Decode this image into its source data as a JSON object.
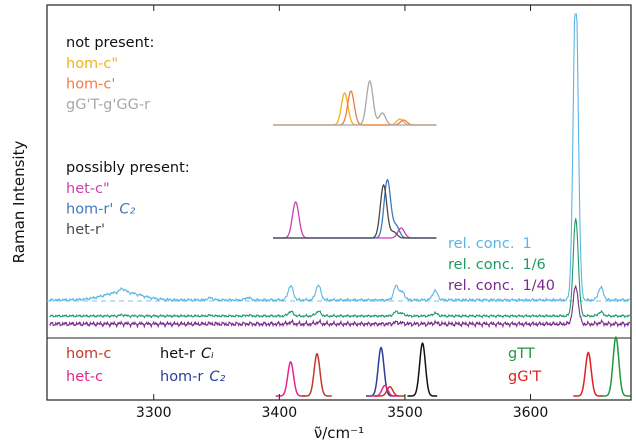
{
  "chart_data": {
    "type": "line",
    "xlabel": "ν̃/cm⁻¹",
    "ylabel": "Raman Intensity",
    "xlim": [
      3215,
      3680
    ],
    "x_ticks": [
      3300,
      3400,
      3500,
      3600
    ],
    "grid": false,
    "groups": [
      {
        "heading": "not present:",
        "series": [
          {
            "name": "hom-c\"",
            "color": "#f0b216",
            "peaks": [
              {
                "x": 3452,
                "h": 0.32
              },
              {
                "x": 3496,
                "h": 0.06
              }
            ]
          },
          {
            "name": "hom-c'",
            "color": "#ee7d45",
            "peaks": [
              {
                "x": 3457,
                "h": 0.34
              },
              {
                "x": 3499,
                "h": 0.05
              }
            ]
          },
          {
            "name": "gG'T-g'GG-r",
            "color": "#a8a8a8",
            "peaks": [
              {
                "x": 3472,
                "h": 0.44
              },
              {
                "x": 3482,
                "h": 0.12
              }
            ]
          }
        ]
      },
      {
        "heading": "possibly present:",
        "series": [
          {
            "name": "het-c\"",
            "math": "",
            "color": "#cc3fb0",
            "peaks": [
              {
                "x": 3413,
                "h": 0.36
              },
              {
                "x": 3497,
                "h": 0.1
              }
            ]
          },
          {
            "name": "hom-r'",
            "math": "C₂",
            "color": "#3f78be",
            "peaks": [
              {
                "x": 3486,
                "h": 0.58
              },
              {
                "x": 3493,
                "h": 0.12
              }
            ]
          },
          {
            "name": "het-r'",
            "math": "",
            "color": "#4a4a4a",
            "peaks": [
              {
                "x": 3483,
                "h": 0.53
              },
              {
                "x": 3491,
                "h": 0.06
              }
            ]
          }
        ]
      }
    ],
    "experimental": [
      {
        "label": "rel. conc. 1",
        "label_main": "rel. conc.",
        "label_value": "1",
        "color": "#5ab6e6"
      },
      {
        "label": "rel. conc. 1/6",
        "label_main": "rel. conc.",
        "label_value": "1/6",
        "color": "#1e9a65"
      },
      {
        "label": "rel. conc. 1/40",
        "label_main": "rel. conc.",
        "label_value": "1/40",
        "color": "#7a2a8c"
      }
    ],
    "experimental_peaks": [
      {
        "x": 3275,
        "h": 0.08
      },
      {
        "x": 3345,
        "h": 0.05
      },
      {
        "x": 3375,
        "h": 0.06
      },
      {
        "x": 3409,
        "h": 0.34
      },
      {
        "x": 3431,
        "h": 0.35
      },
      {
        "x": 3493,
        "h": 0.33
      },
      {
        "x": 3498,
        "h": 0.18
      },
      {
        "x": 3524,
        "h": 0.22
      },
      {
        "x": 3636,
        "h": 7.5
      },
      {
        "x": 3656,
        "h": 0.3
      }
    ],
    "bottom_legend": [
      {
        "name": "hom-c",
        "math": "",
        "color": "#c0392b"
      },
      {
        "name": "het-c",
        "math": "",
        "color": "#e8248c"
      },
      {
        "name": "het-r",
        "math": "Cᵢ",
        "color": "#111111"
      },
      {
        "name": "hom-r",
        "math": "C₂",
        "color": "#2c3e9c"
      },
      {
        "name": "gTT",
        "math": "",
        "color": "#1f9a3e"
      },
      {
        "name": "gG'T",
        "math": "",
        "color": "#e02020"
      }
    ],
    "bottom_peaks": [
      {
        "series": "het-c",
        "color": "#e8248c",
        "x": 3409,
        "h": 0.55
      },
      {
        "series": "hom-c",
        "color": "#c0392b",
        "x": 3430,
        "h": 0.68
      },
      {
        "series": "hom-r",
        "color": "#2c3e9c",
        "x": 3481,
        "h": 0.78
      },
      {
        "series": "het-c",
        "color": "#e8248c",
        "x": 3484,
        "h": 0.17
      },
      {
        "series": "hom-c",
        "color": "#c0392b",
        "x": 3488,
        "h": 0.15
      },
      {
        "series": "het-r",
        "color": "#111111",
        "x": 3514,
        "h": 0.85
      },
      {
        "series": "gG'T",
        "color": "#e02020",
        "x": 3646,
        "h": 0.7
      },
      {
        "series": "gTT",
        "color": "#1f9a3e",
        "x": 3668,
        "h": 0.95
      }
    ]
  }
}
